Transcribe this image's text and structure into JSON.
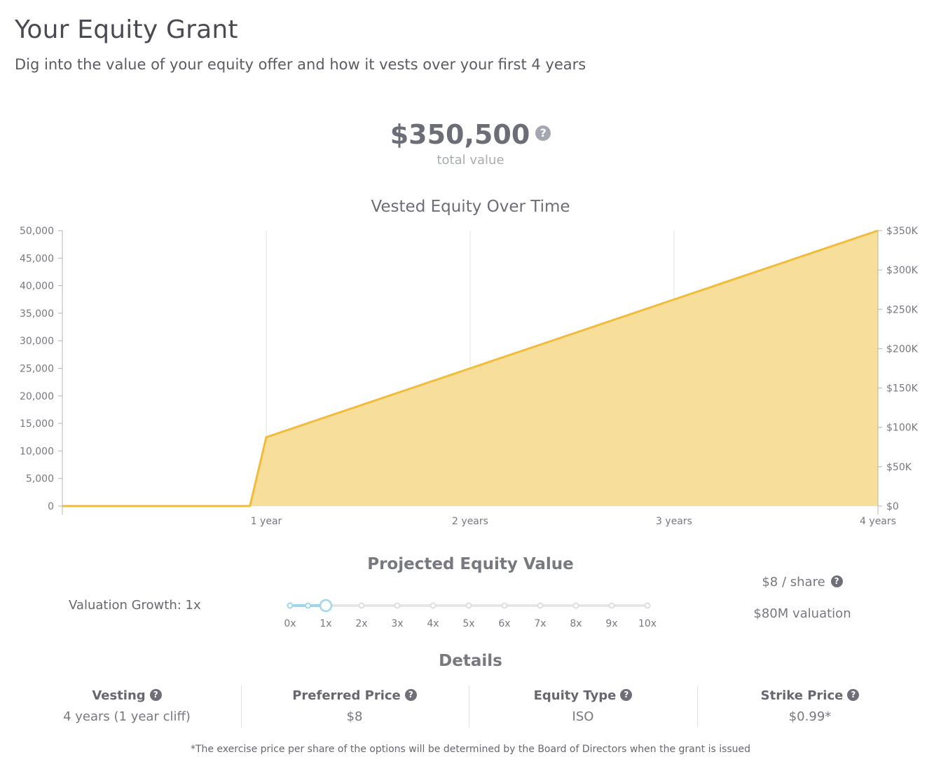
{
  "header": {
    "title": "Your Equity Grant",
    "subtitle": "Dig into the value of your equity offer and how it vests over your first 4 years"
  },
  "total": {
    "value": "$350,500",
    "label": "total value",
    "help_icon": "question-circle-icon"
  },
  "chart_data": {
    "type": "area",
    "title": "Vested Equity Over Time",
    "x": [
      0,
      0.92,
      1,
      2,
      3,
      4
    ],
    "values": [
      0,
      0,
      12500,
      25000,
      37500,
      50000
    ],
    "x_ticks": [
      "1 year",
      "2 years",
      "3 years",
      "4 years"
    ],
    "x_tick_values": [
      1,
      2,
      3,
      4
    ],
    "xlim": [
      0,
      4
    ],
    "y_left_ticks": [
      "0",
      "5,000",
      "10,000",
      "15,000",
      "20,000",
      "25,000",
      "30,000",
      "35,000",
      "40,000",
      "45,000",
      "50,000"
    ],
    "ylim_left": [
      0,
      50000
    ],
    "y_right_ticks": [
      "$0",
      "$50K",
      "$100K",
      "$150K",
      "$200K",
      "$250K",
      "$300K",
      "$350K"
    ],
    "ylim_right": [
      0,
      350000
    ],
    "color": "#f2bc3a",
    "fill_color": "#f7df9b",
    "grid": "vertical"
  },
  "projected": {
    "title": "Projected Equity Value",
    "growth_label": "Valuation Growth: 1x",
    "slider": {
      "labels": [
        "0x",
        "1x",
        "2x",
        "3x",
        "4x",
        "5x",
        "6x",
        "7x",
        "8x",
        "9x",
        "10x"
      ],
      "selected": 1,
      "accent": "#9fd6ee"
    },
    "per_share": "$8 / share",
    "valuation": "$80M valuation"
  },
  "details": {
    "title": "Details",
    "items": [
      {
        "label": "Vesting",
        "value": "4 years (1 year cliff)"
      },
      {
        "label": "Preferred Price",
        "value": "$8"
      },
      {
        "label": "Equity Type",
        "value": "ISO"
      },
      {
        "label": "Strike Price",
        "value": "$0.99*"
      }
    ]
  },
  "footnote": "*The exercise price per share of the options will be determined by the Board of Directors when the grant is issued"
}
